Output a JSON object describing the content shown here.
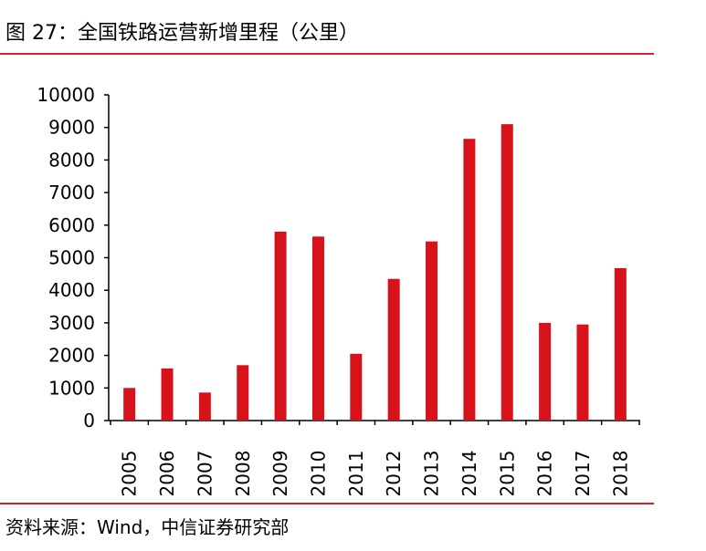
{
  "figure": {
    "title": "图 27：全国铁路运营新增里程（公里）",
    "source": "资料来源：Wind，中信证券研究部"
  },
  "colors": {
    "bar": "#d7121b",
    "rule": "#d52031",
    "axis": "#000000"
  },
  "chart_data": {
    "type": "bar",
    "categories": [
      "2005",
      "2006",
      "2007",
      "2008",
      "2009",
      "2010",
      "2011",
      "2012",
      "2013",
      "2014",
      "2015",
      "2016",
      "2017",
      "2018"
    ],
    "values": [
      1000,
      1600,
      860,
      1700,
      5800,
      5650,
      2050,
      4350,
      5500,
      8650,
      9100,
      3000,
      2950,
      4680
    ],
    "yticks": [
      0,
      1000,
      2000,
      3000,
      4000,
      5000,
      6000,
      7000,
      8000,
      9000,
      10000
    ],
    "ylim": [
      0,
      10000
    ],
    "grid": false,
    "legend": "none"
  }
}
